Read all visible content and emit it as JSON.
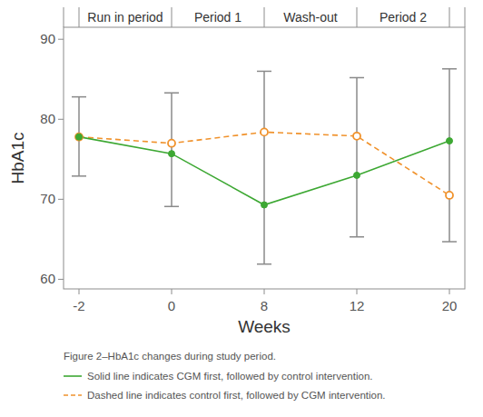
{
  "chart_data": {
    "type": "line",
    "x_label": "Weeks",
    "y_label": "HbA1c",
    "periods": [
      "Run in period",
      "Period 1",
      "Wash-out",
      "Period 2"
    ],
    "caption": "Figure 2–HbA1c changes during study period.",
    "categories": [
      "-2",
      "0",
      "8",
      "12",
      "20"
    ],
    "series": [
      {
        "name": "Solid line indicates CGM first, followed by control intervention.",
        "color": "#3da833",
        "marker": "circle",
        "line_style": "solid",
        "values": [
          77.8,
          75.7,
          69.3,
          73.0,
          77.3
        ]
      },
      {
        "name": "Dashed line indicates control first, followed by CGM intervention.",
        "color": "#f0922c",
        "marker": "open-circle",
        "line_style": "dashed",
        "values": [
          77.8,
          77.0,
          78.4,
          77.9,
          70.5
        ]
      }
    ],
    "error_low": [
      72.9,
      69.1,
      61.9,
      65.3,
      64.7
    ],
    "error_high": [
      82.8,
      83.3,
      86.0,
      85.2,
      86.3
    ],
    "ylim": [
      58.8,
      91.5
    ],
    "yticks": [
      60,
      70,
      80,
      90
    ],
    "grid": false
  }
}
